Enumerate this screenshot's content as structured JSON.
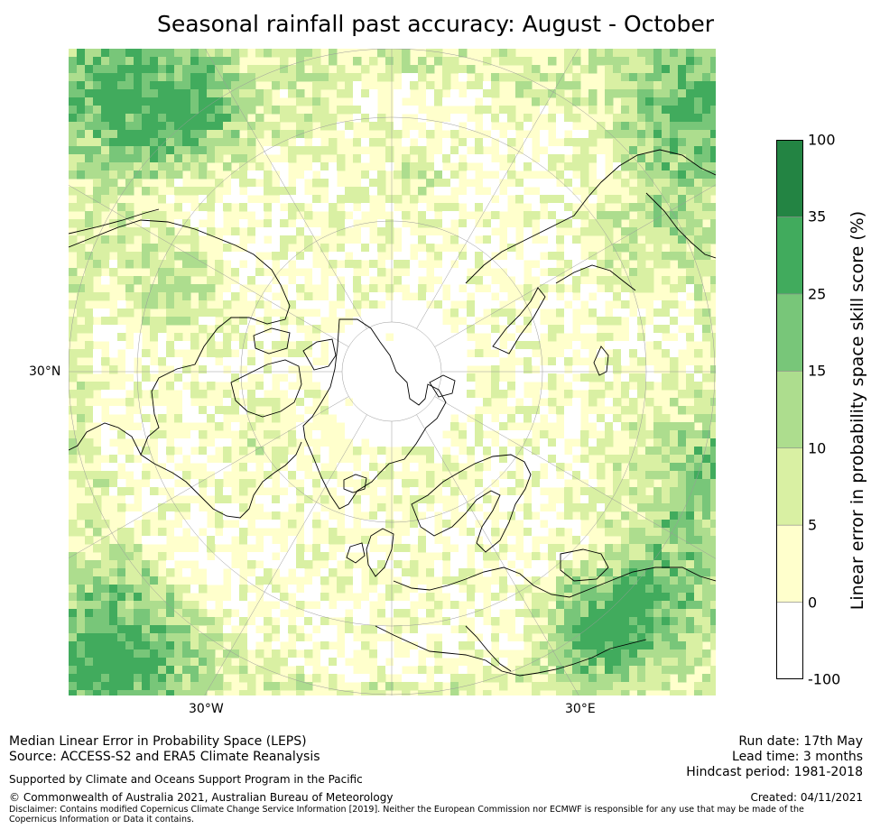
{
  "title": "Seasonal rainfall past accuracy: August - October",
  "map": {
    "projection": "north-polar-stereographic",
    "lat_label": "30°N",
    "lon_labels": [
      "30°W",
      "30°E"
    ],
    "colors": {
      "coastline": "#000000",
      "gridline": "#9a9a9a"
    }
  },
  "colorbar": {
    "label": "Linear error in probability space skill score (%)",
    "ticks": [
      "-100",
      "0",
      "5",
      "10",
      "15",
      "25",
      "35",
      "100"
    ],
    "bins": [
      {
        "from": -100,
        "to": 0,
        "color": "#ffffff"
      },
      {
        "from": 0,
        "to": 5,
        "color": "#ffffcc"
      },
      {
        "from": 5,
        "to": 10,
        "color": "#d9f0a3"
      },
      {
        "from": 10,
        "to": 15,
        "color": "#addd8e"
      },
      {
        "from": 15,
        "to": 25,
        "color": "#78c679"
      },
      {
        "from": 25,
        "to": 35,
        "color": "#41ab5d"
      },
      {
        "from": 35,
        "to": 100,
        "color": "#238443"
      }
    ]
  },
  "footer": {
    "left_line1": "Median Linear Error in Probability Space (LEPS)",
    "left_line2": "Source: ACCESS-S2 and ERA5 Climate Reanalysis",
    "right_line1": "Run date: 17th May",
    "right_line2": "Lead time: 3 months",
    "right_line3": "Hindcast period: 1981-2018",
    "support": "Supported by Climate and Oceans Support Program in the Pacific",
    "copyright": "© Commonwealth of Australia 2021, Australian Bureau of Meteorology",
    "created": "Created: 04/11/2021",
    "disclaimer": "Disclaimer: Contains modified Copernicus Climate Change Service Information [2019]. Neither the European Commission nor ECMWF is responsible for any use that may be made of the Copernicus Information or Data it contains."
  }
}
